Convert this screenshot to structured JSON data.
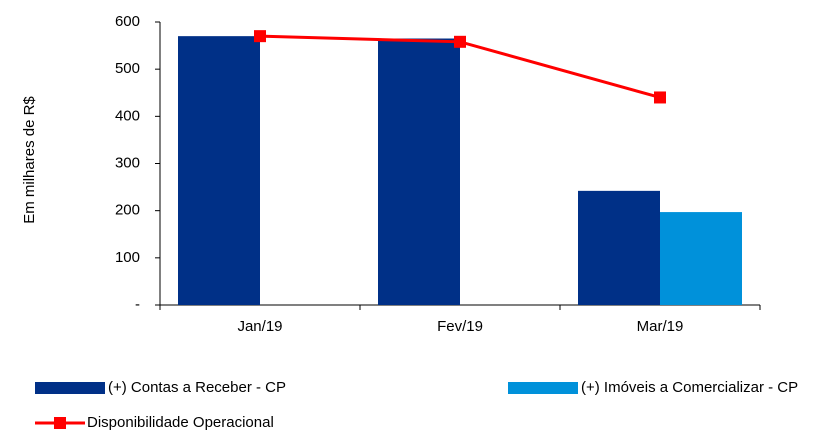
{
  "chart_data": {
    "type": "bar",
    "y_label": "Em milhares de R$",
    "categories": [
      "Jan/19",
      "Fev/19",
      "Mar/19"
    ],
    "series": [
      {
        "name": "(+) Contas a Receber - CP",
        "color": "#003087",
        "values": [
          570,
          565,
          242
        ]
      },
      {
        "name": "(+) Imóveis a Comercializar - CP",
        "color": "#0091da",
        "values": [
          null,
          null,
          197
        ]
      },
      {
        "name": "Disponibilidade Operacional",
        "color": "#ff0000",
        "type": "line",
        "values": [
          570,
          558,
          440
        ]
      }
    ],
    "ylim": [
      0,
      600
    ],
    "yticks": [
      {
        "value": 0,
        "label": "-"
      },
      100,
      200,
      300,
      400,
      500,
      600
    ],
    "legend": "bottom"
  }
}
